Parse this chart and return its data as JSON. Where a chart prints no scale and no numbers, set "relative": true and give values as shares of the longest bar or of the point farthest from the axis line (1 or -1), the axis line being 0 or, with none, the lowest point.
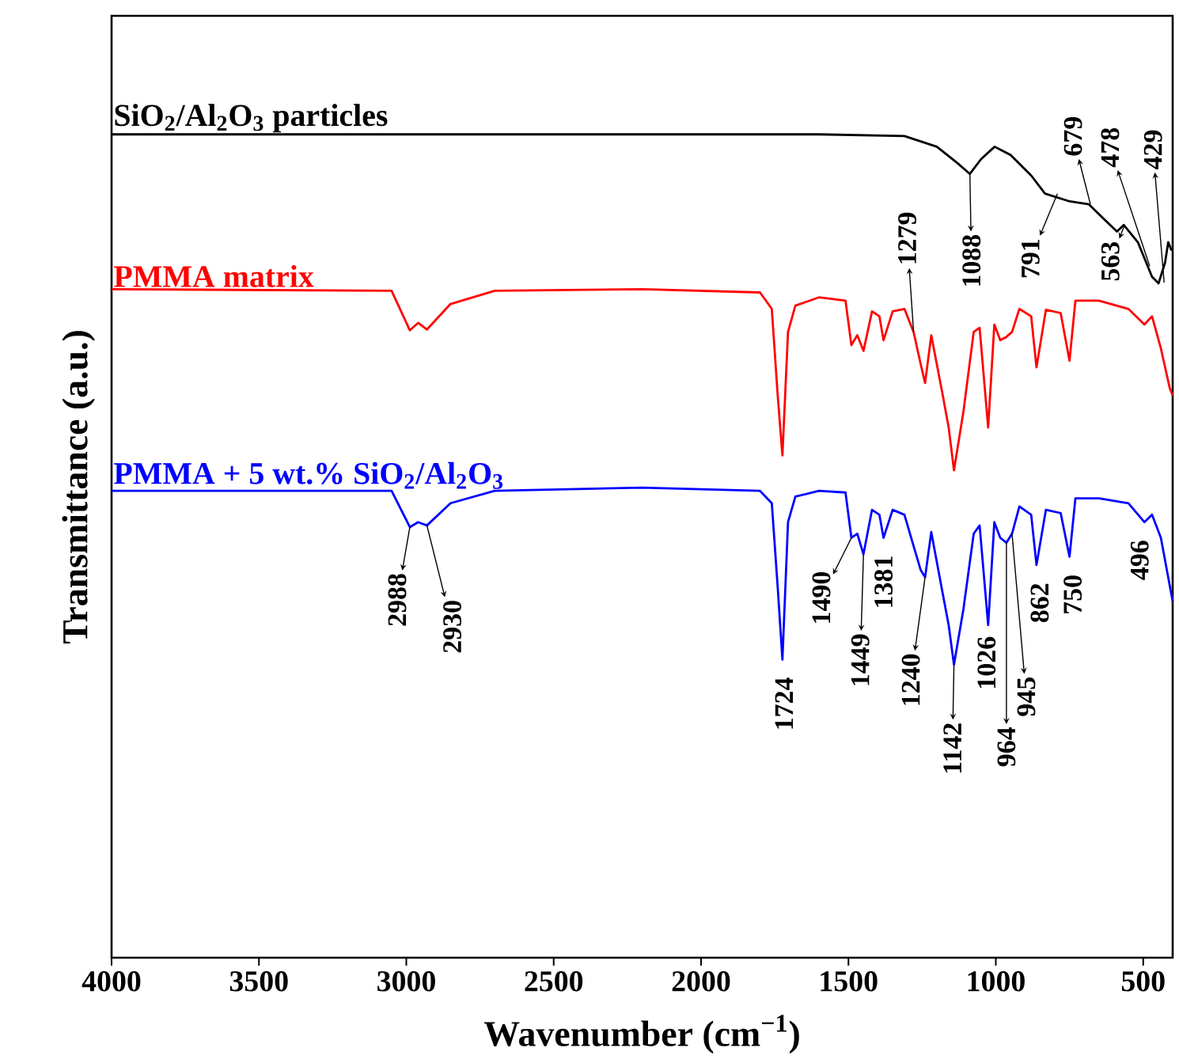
{
  "chart_data": {
    "type": "line",
    "relative": true,
    "xlabel": "Wavenumber (cm$^{−1}$)",
    "ylabel": "Transmittance (a.u.)",
    "xlim": [
      4000,
      400
    ],
    "xticks": [
      4000,
      3500,
      3000,
      2500,
      2000,
      1500,
      1000,
      500
    ],
    "series": [
      {
        "name": "SiO$_{2}$/Al$_{2}$O$_{3}$ particles",
        "color": "#000000",
        "x": [
          4000,
          3000,
          2200,
          1600,
          1310,
          1200,
          1130,
          1088,
          1050,
          1004,
          950,
          880,
          833,
          753,
          684,
          636,
          589,
          566,
          518,
          470,
          448,
          426,
          415,
          405,
          400
        ],
        "values": [
          1.0,
          1.0,
          1.0,
          1.0,
          0.998,
          0.985,
          0.965,
          0.952,
          0.97,
          0.985,
          0.975,
          0.95,
          0.928,
          0.919,
          0.915,
          0.898,
          0.882,
          0.89,
          0.869,
          0.827,
          0.819,
          0.844,
          0.869,
          0.86,
          0.86
        ]
      },
      {
        "name": "PMMA matrix",
        "color": "#ff0000",
        "x": [
          4000,
          3050,
          2988,
          2960,
          2930,
          2850,
          2700,
          2200,
          1800,
          1760,
          1740,
          1724,
          1705,
          1680,
          1600,
          1510,
          1490,
          1470,
          1449,
          1420,
          1395,
          1381,
          1350,
          1310,
          1279,
          1255,
          1240,
          1219,
          1180,
          1160,
          1142,
          1110,
          1075,
          1055,
          1026,
          1005,
          985,
          964,
          945,
          920,
          880,
          862,
          830,
          780,
          750,
          730,
          650,
          550,
          496,
          470,
          440,
          410,
          400
        ],
        "values": [
          0.812,
          0.81,
          0.762,
          0.771,
          0.763,
          0.794,
          0.81,
          0.812,
          0.808,
          0.788,
          0.683,
          0.61,
          0.76,
          0.792,
          0.802,
          0.798,
          0.744,
          0.756,
          0.737,
          0.785,
          0.779,
          0.75,
          0.785,
          0.788,
          0.76,
          0.721,
          0.698,
          0.756,
          0.683,
          0.644,
          0.592,
          0.663,
          0.76,
          0.765,
          0.644,
          0.769,
          0.75,
          0.754,
          0.76,
          0.788,
          0.779,
          0.717,
          0.787,
          0.783,
          0.725,
          0.798,
          0.798,
          0.788,
          0.769,
          0.779,
          0.74,
          0.692,
          0.683
        ]
      },
      {
        "name": "PMMA + 5 wt.% SiO$_{2}$/Al$_{2}$O$_{3}$",
        "color": "#0000ff",
        "x": [
          4000,
          3050,
          2988,
          2960,
          2930,
          2850,
          2700,
          2200,
          1800,
          1760,
          1740,
          1724,
          1705,
          1680,
          1600,
          1510,
          1490,
          1470,
          1449,
          1420,
          1395,
          1381,
          1350,
          1310,
          1279,
          1255,
          1240,
          1219,
          1180,
          1160,
          1142,
          1110,
          1075,
          1055,
          1026,
          1005,
          985,
          964,
          945,
          920,
          880,
          862,
          830,
          780,
          750,
          730,
          650,
          550,
          496,
          470,
          440,
          410,
          400
        ],
        "values": [
          0.567,
          0.567,
          0.523,
          0.529,
          0.525,
          0.552,
          0.567,
          0.571,
          0.567,
          0.552,
          0.45,
          0.362,
          0.529,
          0.56,
          0.567,
          0.565,
          0.51,
          0.515,
          0.49,
          0.544,
          0.538,
          0.51,
          0.544,
          0.538,
          0.5,
          0.471,
          0.462,
          0.517,
          0.442,
          0.404,
          0.356,
          0.423,
          0.515,
          0.525,
          0.404,
          0.529,
          0.51,
          0.504,
          0.515,
          0.548,
          0.538,
          0.477,
          0.544,
          0.54,
          0.487,
          0.558,
          0.558,
          0.552,
          0.529,
          0.538,
          0.51,
          0.452,
          0.433
        ]
      }
    ],
    "annotations": [
      {
        "text": "1088",
        "x": 1088,
        "y": 0.952
      },
      {
        "text": "791",
        "x": 791,
        "y": 0.928
      },
      {
        "text": "679",
        "x": 679,
        "y": 0.915
      },
      {
        "text": "563",
        "x": 563,
        "y": 0.89
      },
      {
        "text": "478",
        "x": 478,
        "y": 0.84
      },
      {
        "text": "429",
        "x": 429,
        "y": 0.82
      },
      {
        "text": "1279",
        "x": 1279,
        "y": 0.76
      },
      {
        "text": "2988",
        "x": 2988,
        "y": 0.523
      },
      {
        "text": "2930",
        "x": 2930,
        "y": 0.525
      },
      {
        "text": "1724",
        "x": 1724,
        "y": 0.362
      },
      {
        "text": "1490",
        "x": 1490,
        "y": 0.51
      },
      {
        "text": "1449",
        "x": 1449,
        "y": 0.49
      },
      {
        "text": "1381",
        "x": 1381,
        "y": 0.51
      },
      {
        "text": "1240",
        "x": 1240,
        "y": 0.462
      },
      {
        "text": "1142",
        "x": 1142,
        "y": 0.356
      },
      {
        "text": "1026",
        "x": 1026,
        "y": 0.404
      },
      {
        "text": "964",
        "x": 964,
        "y": 0.504
      },
      {
        "text": "945",
        "x": 945,
        "y": 0.515
      },
      {
        "text": "862",
        "x": 862,
        "y": 0.477
      },
      {
        "text": "750",
        "x": 750,
        "y": 0.487
      },
      {
        "text": "496",
        "x": 496,
        "y": 0.529
      }
    ]
  }
}
